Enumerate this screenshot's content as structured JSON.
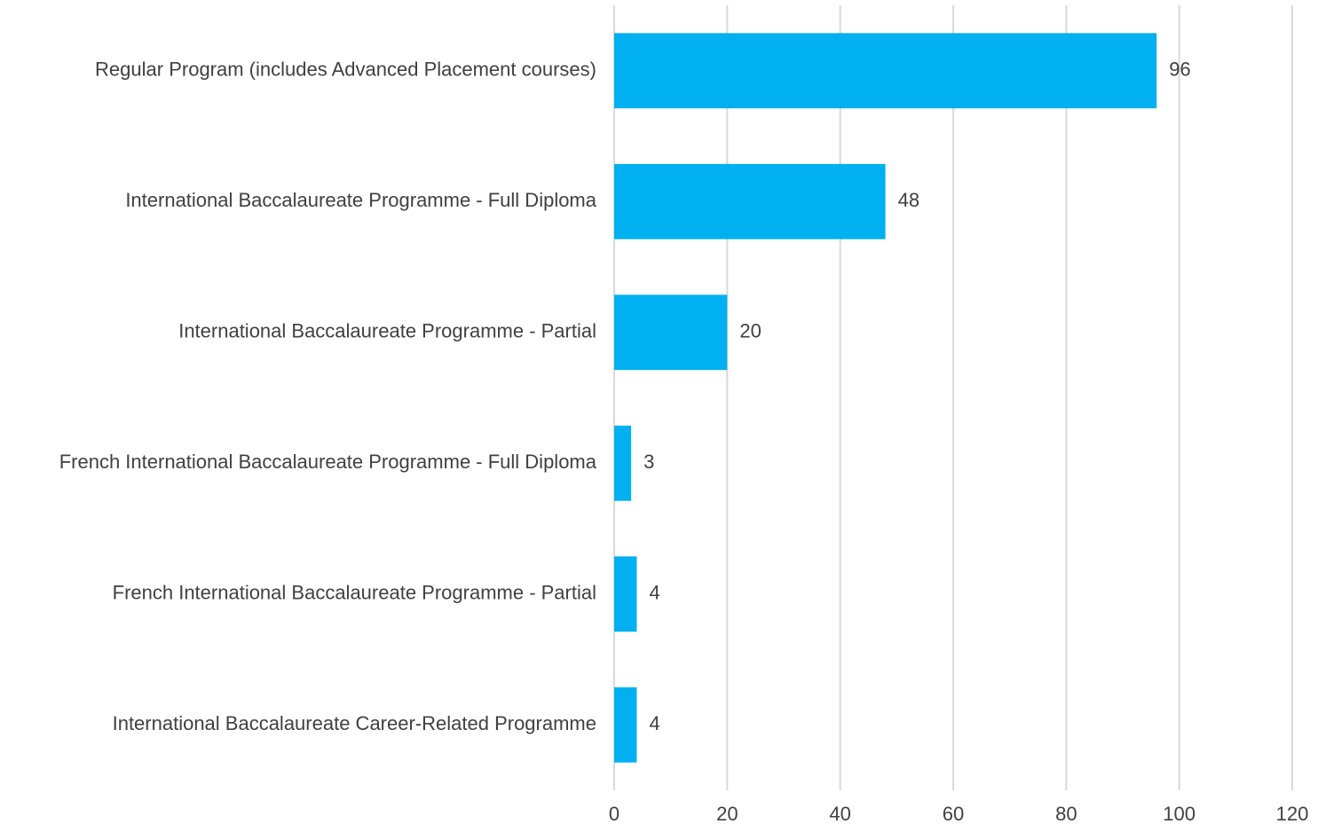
{
  "chart_data": {
    "type": "hbar",
    "categories": [
      "Regular Program (includes Advanced Placement courses)",
      "International Baccalaureate Programme - Full Diploma",
      "International Baccalaureate Programme - Partial",
      "French International Baccalaureate Programme - Full Diploma",
      "French International Baccalaureate Programme - Partial",
      "International Baccalaureate Career-Related Programme"
    ],
    "values": [
      96,
      48,
      20,
      3,
      4,
      4
    ],
    "color": "#00b0f0",
    "xlim": [
      0,
      120
    ],
    "xticks": [
      0,
      20,
      40,
      60,
      80,
      100,
      120
    ],
    "grid": true
  }
}
